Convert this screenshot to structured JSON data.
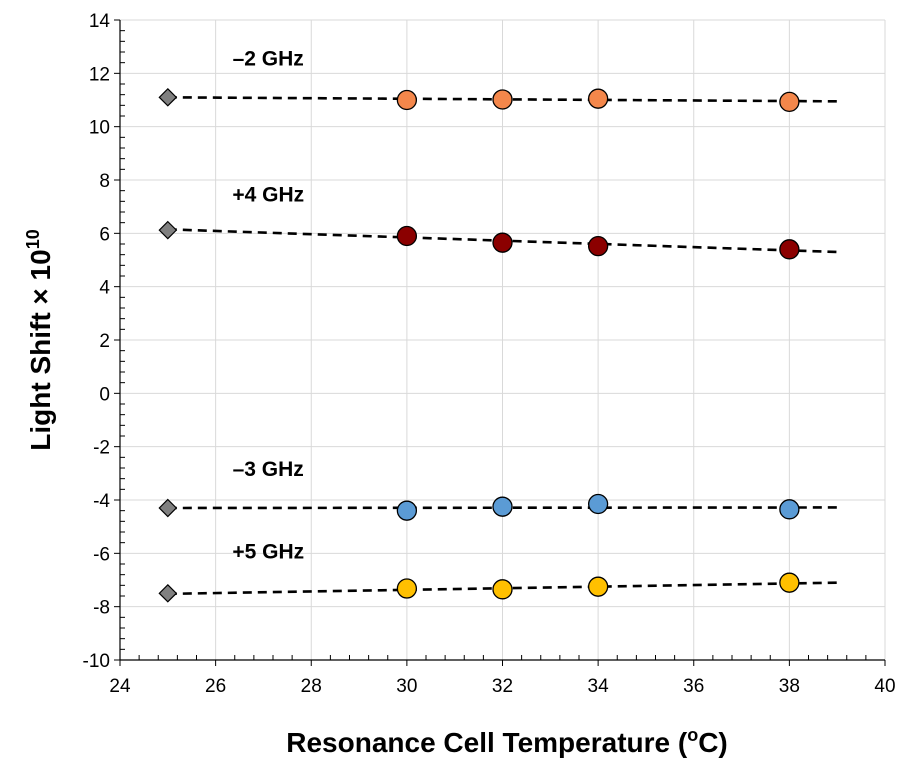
{
  "chart_data": {
    "type": "scatter",
    "xlabel_main": "Resonance Cell Temperature (",
    "xlabel_sup": "o",
    "xlabel_end": "C)",
    "ylabel_main": "Light Shift × 10",
    "ylabel_sup": "10",
    "xlim": [
      24,
      40
    ],
    "ylim": [
      -10,
      14
    ],
    "x_ticks": [
      24,
      26,
      28,
      30,
      32,
      34,
      36,
      38,
      40
    ],
    "y_ticks": [
      -10,
      -8,
      -6,
      -4,
      -2,
      0,
      2,
      4,
      6,
      8,
      10,
      12,
      14
    ],
    "grid": true,
    "series": [
      {
        "name": "–2 GHz",
        "color": "#F4874B",
        "points": [
          [
            30,
            11.0
          ],
          [
            32,
            11.02
          ],
          [
            34,
            11.05
          ],
          [
            38,
            10.93
          ]
        ],
        "fit_point": [
          25,
          11.1
        ],
        "fit_line": [
          [
            25,
            11.1
          ],
          [
            39,
            10.95
          ]
        ]
      },
      {
        "name": "+4 GHz",
        "color": "#8B0000",
        "points": [
          [
            30,
            5.9
          ],
          [
            32,
            5.65
          ],
          [
            34,
            5.52
          ],
          [
            38,
            5.4
          ]
        ],
        "fit_point": [
          25,
          6.12
        ],
        "fit_line": [
          [
            25,
            6.15
          ],
          [
            39,
            5.3
          ]
        ]
      },
      {
        "name": "–3 GHz",
        "color": "#5B9BD5",
        "points": [
          [
            30,
            -4.4
          ],
          [
            32,
            -4.25
          ],
          [
            34,
            -4.15
          ],
          [
            38,
            -4.35
          ]
        ],
        "fit_point": [
          25,
          -4.3
        ],
        "fit_line": [
          [
            25,
            -4.3
          ],
          [
            39,
            -4.28
          ]
        ]
      },
      {
        "name": "+5 GHz",
        "color": "#FFC000",
        "points": [
          [
            30,
            -7.32
          ],
          [
            32,
            -7.35
          ],
          [
            34,
            -7.25
          ],
          [
            38,
            -7.1
          ]
        ],
        "fit_point": [
          25,
          -7.5
        ],
        "fit_line": [
          [
            25,
            -7.52
          ],
          [
            39,
            -7.1
          ]
        ]
      }
    ],
    "series_labels": [
      {
        "text": "–2 GHz",
        "x": 27.1,
        "y": 12.3
      },
      {
        "text": "+4 GHz",
        "x": 27.1,
        "y": 7.2
      },
      {
        "text": "–3 GHz",
        "x": 27.1,
        "y": -3.1
      },
      {
        "text": "+5 GHz",
        "x": 27.1,
        "y": -6.2
      }
    ],
    "fit_point_color": "#808080"
  }
}
